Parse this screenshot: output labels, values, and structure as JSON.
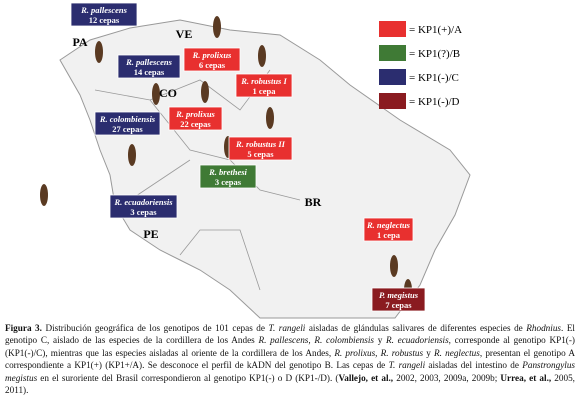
{
  "map": {
    "countries": [
      "PA",
      "VE",
      "CO",
      "BR",
      "PE"
    ],
    "boxes": [
      {
        "species": "R. pallescens",
        "count": "12 cepas",
        "genotype": 2
      },
      {
        "species": "R. pallescens",
        "count": "14 cepas",
        "genotype": 2
      },
      {
        "species": "R. prolixus",
        "count": "6 cepas",
        "genotype": 0
      },
      {
        "species": "R. robustus I",
        "count": "1 cepa",
        "genotype": 0
      },
      {
        "species": "R. colombiensis",
        "count": "27 cepas",
        "genotype": 2
      },
      {
        "species": "R. prolixus",
        "count": "22 cepas",
        "genotype": 0
      },
      {
        "species": "R. robustus II",
        "count": "5 cepas",
        "genotype": 0
      },
      {
        "species": "R. brethesi",
        "count": "3 cepas",
        "genotype": 1
      },
      {
        "species": "R. ecuadoriensis",
        "count": "3 cepas",
        "genotype": 2
      },
      {
        "species": "R. neglectus",
        "count": "1 cepa",
        "genotype": 0
      },
      {
        "species": "P. megistus",
        "count": "7 cepas",
        "genotype": 3
      }
    ],
    "legend": [
      {
        "label": "= KP1(+)/A",
        "color": "#e8302f"
      },
      {
        "label": "= KP1(?)/B",
        "color": "#3f7a35"
      },
      {
        "label": "= KP1(-)/C",
        "color": "#2b2d6f"
      },
      {
        "label": "= KP1(-)/D",
        "color": "#8a1b20"
      }
    ]
  },
  "caption": {
    "parts": [
      {
        "text": "Figura 3.",
        "style": "bold"
      },
      {
        "text": " Distribución geográfica de los genotipos de 101 cepas de ",
        "style": "normal"
      },
      {
        "text": "T. rangeli",
        "style": "italic"
      },
      {
        "text": " aisladas de glándulas salivares de diferentes especies de ",
        "style": "normal"
      },
      {
        "text": "Rhodnius",
        "style": "italic"
      },
      {
        "text": ". El genotipo C, aislado de las especies de la cordillera de los Andes ",
        "style": "normal"
      },
      {
        "text": "R. pallescens, R. colombiensis",
        "style": "italic"
      },
      {
        "text": " y ",
        "style": "normal"
      },
      {
        "text": "R. ecuadoriensis",
        "style": "italic"
      },
      {
        "text": ", corresponde al genotipo KP1(-) (KP1(-)/C), mientras que las especies aisladas al oriente de la cordillera de los Andes, ",
        "style": "normal"
      },
      {
        "text": "R. prolixus, R. robustus",
        "style": "italic"
      },
      {
        "text": " y ",
        "style": "normal"
      },
      {
        "text": "R. neglectus",
        "style": "italic"
      },
      {
        "text": ", presentan el genotipo A correspondiente a KP1(+) (KP1+/A). Se desconoce el perfil de kADN del genotipo B. Las cepas de ",
        "style": "normal"
      },
      {
        "text": "T. rangeli",
        "style": "italic"
      },
      {
        "text": " aisladas del intestino de ",
        "style": "normal"
      },
      {
        "text": "Panstrongylus megistus",
        "style": "italic"
      },
      {
        "text": " en el suroriente del Brasil correspondieron al genotipo KP1(-) o D (KP1-/D). (",
        "style": "normal"
      },
      {
        "text": "Vallejo, et al.,",
        "style": "bold"
      },
      {
        "text": " 2002, 2003, 2009a, 2009b; ",
        "style": "normal"
      },
      {
        "text": "Urrea, et al.,",
        "style": "bold"
      },
      {
        "text": " 2005, 2011).",
        "style": "normal"
      }
    ]
  }
}
